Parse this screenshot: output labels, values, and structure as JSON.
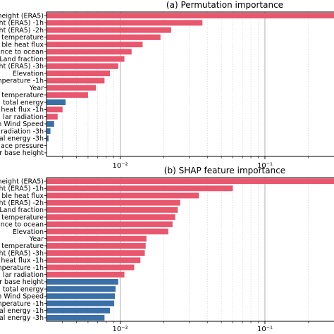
{
  "colors": {
    "red": "#e8576e",
    "blue": "#3a6fa8",
    "axis": "#000000",
    "grid": "#c8c8c8"
  },
  "chart_data": [
    {
      "type": "bar",
      "orientation": "horizontal",
      "title": "(a) Permutation importance",
      "x_scale": "log",
      "xlim": [
        0.0031,
        0.3
      ],
      "x_ticks": [
        {
          "value": 0.01,
          "label": "10⁻²"
        },
        {
          "value": 0.1,
          "label": "10⁻¹"
        }
      ],
      "grid": "vertical",
      "legend": "none",
      "categories": [
        "height (ERA5)",
        "ht (ERA5) -1h",
        "ht (ERA5) -2h",
        "temperature",
        "ble heat flux",
        "ance to ocean",
        "Land fraction",
        "ht (ERA5) -3h",
        "Elevation",
        "temperature -1h",
        "Year",
        "temperature",
        "total energy",
        "heat flux -1h",
        "lar radiation",
        "n Wind Speed",
        "radiation -3h",
        "al energy -3h",
        "ace pressure",
        "r base height"
      ],
      "values": [
        0.3,
        0.037,
        0.0225,
        0.019,
        0.0143,
        0.012,
        0.0107,
        0.0097,
        0.0085,
        0.0078,
        0.0068,
        0.006,
        0.0042,
        0.004,
        0.0037,
        0.0035,
        0.0033,
        0.0032,
        0.0031,
        0.0031
      ],
      "bar_colors": [
        "red",
        "red",
        "red",
        "red",
        "red",
        "red",
        "red",
        "red",
        "red",
        "red",
        "red",
        "red",
        "blue",
        "red",
        "red",
        "blue",
        "blue",
        "blue",
        "blue",
        "blue"
      ]
    },
    {
      "type": "bar",
      "orientation": "horizontal",
      "title": "(b) SHAP feature importance",
      "x_scale": "log",
      "xlim": [
        0.0031,
        0.3
      ],
      "x_ticks": [
        {
          "value": 0.01,
          "label": "10⁻²"
        },
        {
          "value": 0.1,
          "label": "10⁻¹"
        }
      ],
      "grid": "vertical",
      "legend": "none",
      "categories": [
        "height (ERA5)",
        "ht (ERA5) -1h",
        "ble heat flux",
        "ht (ERA5) -2h",
        "Land fraction",
        "temperature",
        "ance to ocean",
        "Elevation",
        "Year",
        "temperature",
        "ht (ERA5) -3h",
        "heat flux -1h",
        "temperature -1h",
        "lar radiation",
        "r base height",
        "total energy",
        "n Wind Speed",
        "temperature -1h",
        "al energy -1h",
        "al energy -3h"
      ],
      "values": [
        0.3,
        0.06,
        0.035,
        0.026,
        0.025,
        0.024,
        0.023,
        0.0215,
        0.0152,
        0.015,
        0.0148,
        0.0138,
        0.0125,
        0.0107,
        0.0097,
        0.0093,
        0.0092,
        0.0091,
        0.0085,
        0.0078
      ],
      "bar_colors": [
        "red",
        "red",
        "red",
        "red",
        "red",
        "red",
        "red",
        "red",
        "red",
        "red",
        "red",
        "red",
        "red",
        "red",
        "blue",
        "blue",
        "blue",
        "blue",
        "blue",
        "blue"
      ]
    }
  ]
}
